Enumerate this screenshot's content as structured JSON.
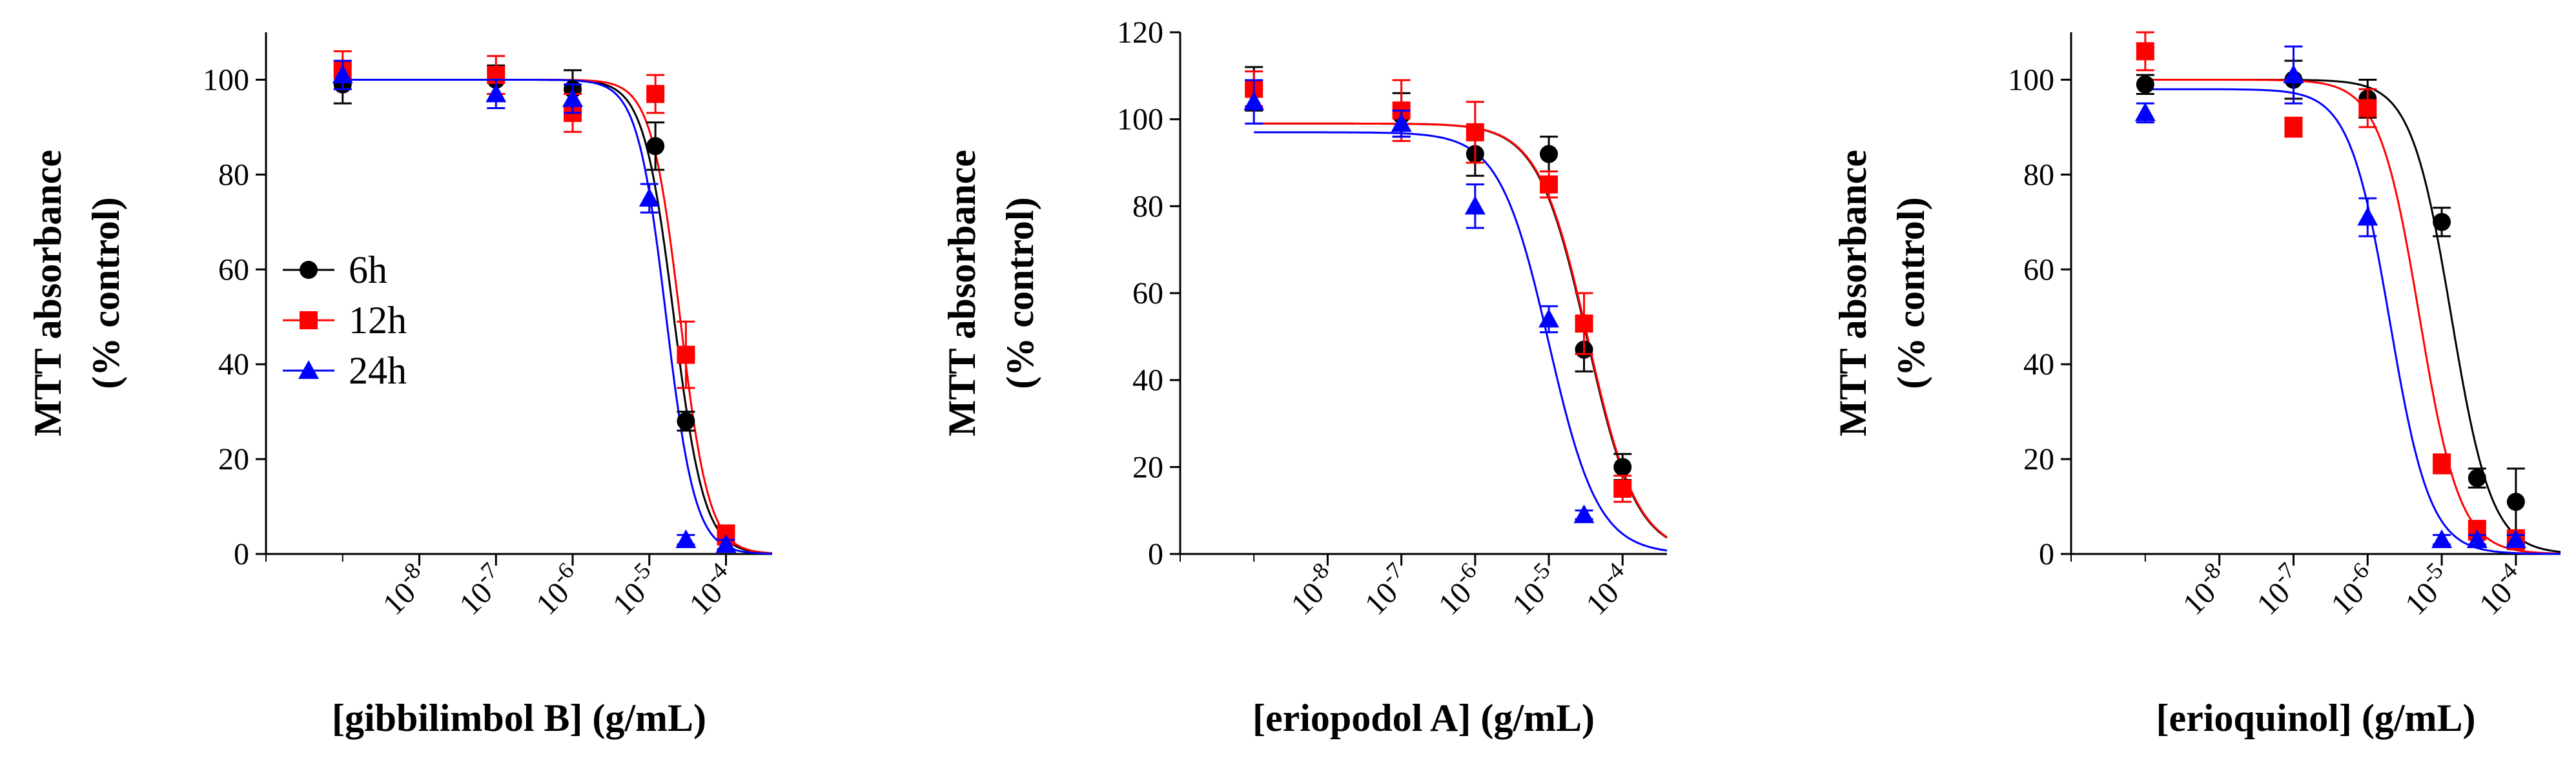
{
  "chart_data": [
    {
      "type": "scatter",
      "title": "",
      "xlabel": "[gibbilimbol B] (g/mL)",
      "ylabel_line1": "MTT absorbance",
      "ylabel_line2": "(% control)",
      "xscale": "log",
      "xlim": [
        1e-10,
        0.0004
      ],
      "ylim": [
        0,
        110
      ],
      "yticks": [
        0,
        20,
        40,
        60,
        80,
        100
      ],
      "ytick_labels": [
        "0",
        "20",
        "40",
        "60",
        "80",
        "100"
      ],
      "xticks": [
        1e-08,
        1e-07,
        1e-06,
        1e-05,
        0.0001
      ],
      "xtick_labels": [
        {
          "base": "10",
          "exp": "-8"
        },
        {
          "base": "10",
          "exp": "-7"
        },
        {
          "base": "10",
          "exp": "-6"
        },
        {
          "base": "10",
          "exp": "-5"
        },
        {
          "base": "10",
          "exp": "-4"
        }
      ],
      "legend": {
        "position": "center-left",
        "entries": [
          "6h",
          "12h",
          "24h"
        ]
      },
      "series": [
        {
          "name": "6h",
          "color": "#000000",
          "marker": "circle",
          "x": [
            1e-09,
            1e-07,
            1e-06,
            1.2e-05,
            3e-05,
            0.0001
          ],
          "y": [
            99,
            100,
            98,
            86,
            28,
            4
          ],
          "err": [
            4,
            3,
            4,
            5,
            2,
            2
          ],
          "fit": {
            "top": 100,
            "bottom": 0,
            "logEC50": -4.68,
            "hill": 2.2
          }
        },
        {
          "name": "12h",
          "color": "#ff0000",
          "marker": "square",
          "x": [
            1e-09,
            1e-07,
            1e-06,
            1.2e-05,
            3e-05,
            0.0001
          ],
          "y": [
            102,
            101,
            93,
            97,
            42,
            4
          ],
          "err": [
            4,
            4,
            4,
            4,
            7,
            2
          ],
          "fit": {
            "top": 100,
            "bottom": 0,
            "logEC50": -4.6,
            "hill": 2.3
          }
        },
        {
          "name": "24h",
          "color": "#0000ff",
          "marker": "triangle",
          "x": [
            1e-09,
            1e-07,
            1e-06,
            1e-05,
            3e-05,
            0.0001
          ],
          "y": [
            101,
            97,
            96,
            75,
            3,
            2
          ],
          "err": [
            3,
            3,
            3,
            3,
            1,
            1
          ],
          "fit": {
            "top": 100,
            "bottom": 0,
            "logEC50": -4.78,
            "hill": 2.3
          }
        }
      ]
    },
    {
      "type": "scatter",
      "title": "",
      "xlabel": "[eriopodol A] (g/mL)",
      "ylabel_line1": "MTT absorbance",
      "ylabel_line2": "(% control)",
      "xscale": "log",
      "xlim": [
        1e-10,
        0.0004
      ],
      "ylim": [
        0,
        120
      ],
      "yticks": [
        0,
        20,
        40,
        60,
        80,
        100,
        120
      ],
      "ytick_labels": [
        "0",
        "20",
        "40",
        "60",
        "80",
        "100",
        "120"
      ],
      "xticks": [
        1e-08,
        1e-07,
        1e-06,
        1e-05,
        0.0001
      ],
      "xtick_labels": [
        {
          "base": "10",
          "exp": "-8"
        },
        {
          "base": "10",
          "exp": "-7"
        },
        {
          "base": "10",
          "exp": "-6"
        },
        {
          "base": "10",
          "exp": "-5"
        },
        {
          "base": "10",
          "exp": "-4"
        }
      ],
      "series": [
        {
          "name": "6h",
          "color": "#000000",
          "marker": "circle",
          "x": [
            1e-09,
            1e-07,
            1e-06,
            1e-05,
            3e-05,
            0.0001
          ],
          "y": [
            107,
            101,
            92,
            92,
            47,
            20
          ],
          "err": [
            5,
            5,
            5,
            4,
            5,
            3
          ],
          "fit": {
            "top": 99,
            "bottom": 0,
            "logEC50": -4.48,
            "hill": 1.3
          }
        },
        {
          "name": "12h",
          "color": "#ff0000",
          "marker": "square",
          "x": [
            1e-09,
            1e-07,
            1e-06,
            1e-05,
            3e-05,
            0.0001
          ],
          "y": [
            107,
            102,
            97,
            85,
            53,
            15
          ],
          "err": [
            4,
            7,
            7,
            3,
            7,
            3
          ],
          "fit": {
            "top": 99,
            "bottom": 0,
            "logEC50": -4.47,
            "hill": 1.3
          }
        },
        {
          "name": "24h",
          "color": "#0000ff",
          "marker": "triangle",
          "x": [
            1e-09,
            1e-07,
            1e-06,
            1e-05,
            3e-05
          ],
          "y": [
            104,
            99,
            80,
            54,
            9
          ],
          "err": [
            5,
            3,
            5,
            3,
            1
          ],
          "fit": {
            "top": 97,
            "bottom": 0,
            "logEC50": -5.0,
            "hill": 1.3
          }
        }
      ]
    },
    {
      "type": "scatter",
      "title": "",
      "xlabel": "[erioquinol] (g/mL)",
      "ylabel_line1": "MTT absorbance",
      "ylabel_line2": "(% control)",
      "xscale": "log",
      "xlim": [
        1e-10,
        0.0004
      ],
      "ylim": [
        0,
        110
      ],
      "yticks": [
        0,
        20,
        40,
        60,
        80,
        100
      ],
      "ytick_labels": [
        "0",
        "20",
        "40",
        "60",
        "80",
        "100"
      ],
      "xticks": [
        1e-08,
        1e-07,
        1e-06,
        1e-05,
        0.0001
      ],
      "xtick_labels": [
        {
          "base": "10",
          "exp": "-8"
        },
        {
          "base": "10",
          "exp": "-7"
        },
        {
          "base": "10",
          "exp": "-6"
        },
        {
          "base": "10",
          "exp": "-5"
        },
        {
          "base": "10",
          "exp": "-4"
        }
      ],
      "series": [
        {
          "name": "6h",
          "color": "#000000",
          "marker": "circle",
          "x": [
            1e-09,
            1e-07,
            1e-06,
            1e-05,
            3e-05,
            0.0001
          ],
          "y": [
            99,
            100,
            96,
            70,
            16,
            11
          ],
          "err": [
            2,
            4,
            4,
            3,
            2,
            7
          ],
          "fit": {
            "top": 100,
            "bottom": 0,
            "logEC50": -4.87,
            "hill": 1.6
          }
        },
        {
          "name": "12h",
          "color": "#ff0000",
          "marker": "square",
          "x": [
            1e-09,
            1e-07,
            1e-06,
            1e-05,
            3e-05,
            0.0001
          ],
          "y": [
            106,
            90,
            94,
            19,
            5,
            3
          ],
          "err": [
            4,
            2,
            4,
            2,
            2,
            2
          ],
          "fit": {
            "top": 100,
            "bottom": 0,
            "logEC50": -5.3,
            "hill": 1.6
          }
        },
        {
          "name": "24h",
          "color": "#0000ff",
          "marker": "triangle",
          "x": [
            1e-09,
            1e-07,
            1e-06,
            1e-05,
            3e-05,
            0.0001
          ],
          "y": [
            93,
            101,
            71,
            3,
            3,
            3
          ],
          "err": [
            2,
            6,
            4,
            1,
            1,
            1
          ],
          "fit": {
            "top": 98,
            "bottom": 0,
            "logEC50": -5.7,
            "hill": 1.6
          }
        }
      ]
    }
  ]
}
